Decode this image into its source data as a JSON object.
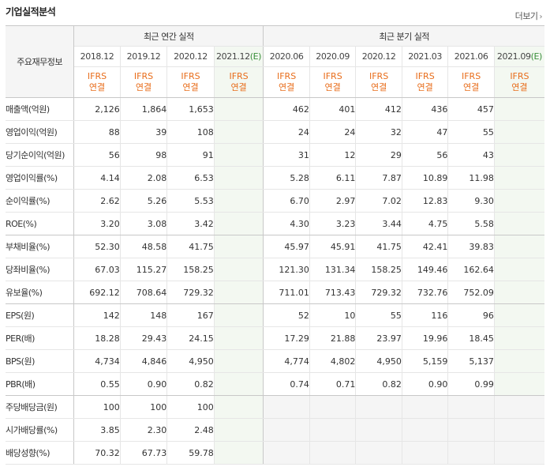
{
  "title": "기업실적분석",
  "more_label": "더보기",
  "row_header": "주요재무정보",
  "annual_group": "최근 연간 실적",
  "quarter_group": "최근 분기 실적",
  "ifrs_line1": "IFRS",
  "ifrs_line2": "연결",
  "estimate_mark": "(E)",
  "annual_periods": [
    "2018.12",
    "2019.12",
    "2020.12",
    "2021.12"
  ],
  "quarter_periods": [
    "2020.06",
    "2020.09",
    "2020.12",
    "2021.03",
    "2021.06",
    "2021.09"
  ],
  "rows": [
    {
      "label": "매출액(억원)",
      "annual": [
        "2,126",
        "1,864",
        "1,653",
        ""
      ],
      "quarter": [
        "462",
        "401",
        "412",
        "436",
        "457",
        ""
      ]
    },
    {
      "label": "영업이익(억원)",
      "annual": [
        "88",
        "39",
        "108",
        ""
      ],
      "quarter": [
        "24",
        "24",
        "32",
        "47",
        "55",
        ""
      ]
    },
    {
      "label": "당기순이익(억원)",
      "annual": [
        "56",
        "98",
        "91",
        ""
      ],
      "quarter": [
        "31",
        "12",
        "29",
        "56",
        "43",
        ""
      ]
    },
    {
      "label": "영업이익률(%)",
      "annual": [
        "4.14",
        "2.08",
        "6.53",
        ""
      ],
      "quarter": [
        "5.28",
        "6.11",
        "7.87",
        "10.89",
        "11.98",
        ""
      ]
    },
    {
      "label": "순이익률(%)",
      "annual": [
        "2.62",
        "5.26",
        "5.53",
        ""
      ],
      "quarter": [
        "6.70",
        "2.97",
        "7.02",
        "12.83",
        "9.30",
        ""
      ]
    },
    {
      "label": "ROE(%)",
      "annual": [
        "3.20",
        "3.08",
        "3.42",
        ""
      ],
      "quarter": [
        "4.30",
        "3.23",
        "3.44",
        "4.75",
        "5.58",
        ""
      ]
    },
    {
      "label": "부채비율(%)",
      "annual": [
        "52.30",
        "48.58",
        "41.75",
        ""
      ],
      "quarter": [
        "45.97",
        "45.91",
        "41.75",
        "42.41",
        "39.83",
        ""
      ]
    },
    {
      "label": "당좌비율(%)",
      "annual": [
        "67.03",
        "115.27",
        "158.25",
        ""
      ],
      "quarter": [
        "121.30",
        "131.34",
        "158.25",
        "149.46",
        "162.64",
        ""
      ]
    },
    {
      "label": "유보율(%)",
      "annual": [
        "692.12",
        "708.64",
        "729.32",
        ""
      ],
      "quarter": [
        "711.01",
        "713.43",
        "729.32",
        "732.76",
        "752.09",
        ""
      ]
    },
    {
      "label": "EPS(원)",
      "annual": [
        "142",
        "148",
        "167",
        ""
      ],
      "quarter": [
        "52",
        "10",
        "55",
        "116",
        "96",
        ""
      ]
    },
    {
      "label": "PER(배)",
      "annual": [
        "18.28",
        "29.43",
        "24.15",
        ""
      ],
      "quarter": [
        "17.29",
        "21.88",
        "23.97",
        "19.96",
        "18.45",
        ""
      ]
    },
    {
      "label": "BPS(원)",
      "annual": [
        "4,734",
        "4,846",
        "4,950",
        ""
      ],
      "quarter": [
        "4,774",
        "4,802",
        "4,950",
        "5,159",
        "5,137",
        ""
      ]
    },
    {
      "label": "PBR(배)",
      "annual": [
        "0.55",
        "0.90",
        "0.82",
        ""
      ],
      "quarter": [
        "0.74",
        "0.71",
        "0.82",
        "0.90",
        "0.99",
        ""
      ]
    },
    {
      "label": "주당배당금(원)",
      "annual": [
        "100",
        "100",
        "100",
        ""
      ],
      "quarter": null
    },
    {
      "label": "시가배당률(%)",
      "annual": [
        "3.85",
        "2.30",
        "2.48",
        ""
      ],
      "quarter": null
    },
    {
      "label": "배당성향(%)",
      "annual": [
        "70.32",
        "67.73",
        "59.78",
        ""
      ],
      "quarter": null
    }
  ],
  "colors": {
    "ifrs": "#e86d1b",
    "estimate_bg": "#f3f8f1",
    "estimate_text": "#3a8f3a",
    "header_bg": "#f5f5f5"
  }
}
